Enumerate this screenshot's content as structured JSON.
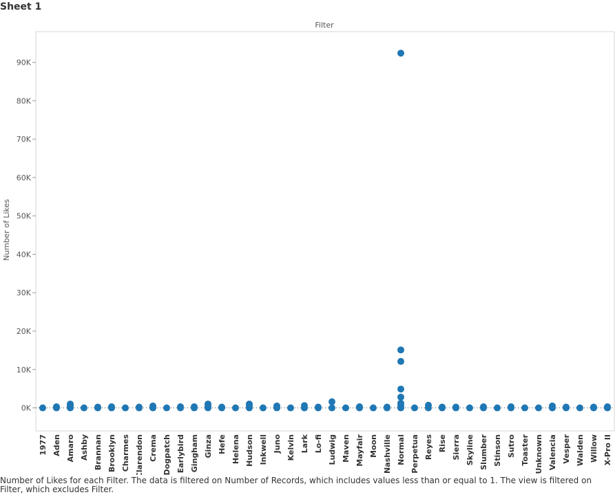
{
  "sheet": {
    "title": "Sheet 1",
    "caption": "Number of Likes for each Filter. The data is filtered on Number of Records, which includes values less than or equal to 1. The view is filtered on Filter, which excludes Filter."
  },
  "colors": {
    "point": "#1f77b4",
    "zero_line": "#555555",
    "axis": "#cccccc"
  },
  "chart_data": {
    "type": "scatter",
    "xlabel": "Filter",
    "ylabel": "Number of Likes",
    "ylim": [
      -6000,
      98000
    ],
    "yticks": [
      0,
      10000,
      20000,
      30000,
      40000,
      50000,
      60000,
      70000,
      80000,
      90000
    ],
    "ytick_labels": [
      "0K",
      "10K",
      "20K",
      "30K",
      "40K",
      "50K",
      "60K",
      "70K",
      "80K",
      "90K"
    ],
    "grid": false,
    "categories": [
      "1977",
      "Aden",
      "Amaro",
      "Ashby",
      "Brannan",
      "Brooklyn",
      "Charmes",
      "Clarendon",
      "Crema",
      "Dogpatch",
      "Earlybird",
      "Gingham",
      "Ginza",
      "Hefe",
      "Helena",
      "Hudson",
      "Inkwell",
      "Juno",
      "Kelvin",
      "Lark",
      "Lo-fi",
      "Ludwig",
      "Maven",
      "Mayfair",
      "Moon",
      "Nashville",
      "Normal",
      "Perpetua",
      "Reyes",
      "Rise",
      "Sierra",
      "Skyline",
      "Slumber",
      "Stinson",
      "Sutro",
      "Toaster",
      "Unknown",
      "Valencia",
      "Vesper",
      "Walden",
      "Willow",
      "X-Pro II"
    ],
    "series": [
      {
        "points": [
          [
            "1977",
            0
          ],
          [
            "Aden",
            0
          ],
          [
            "Aden",
            300
          ],
          [
            "Amaro",
            0
          ],
          [
            "Amaro",
            500
          ],
          [
            "Amaro",
            1000
          ],
          [
            "Ashby",
            0
          ],
          [
            "Brannan",
            0
          ],
          [
            "Brannan",
            200
          ],
          [
            "Brooklyn",
            0
          ],
          [
            "Brooklyn",
            300
          ],
          [
            "Charmes",
            0
          ],
          [
            "Clarendon",
            0
          ],
          [
            "Clarendon",
            200
          ],
          [
            "Crema",
            0
          ],
          [
            "Crema",
            500
          ],
          [
            "Dogpatch",
            0
          ],
          [
            "Earlybird",
            0
          ],
          [
            "Earlybird",
            300
          ],
          [
            "Gingham",
            0
          ],
          [
            "Gingham",
            300
          ],
          [
            "Ginza",
            0
          ],
          [
            "Ginza",
            500
          ],
          [
            "Ginza",
            1000
          ],
          [
            "Hefe",
            0
          ],
          [
            "Hefe",
            200
          ],
          [
            "Helena",
            0
          ],
          [
            "Hudson",
            0
          ],
          [
            "Hudson",
            500
          ],
          [
            "Hudson",
            1000
          ],
          [
            "Inkwell",
            0
          ],
          [
            "Juno",
            0
          ],
          [
            "Juno",
            500
          ],
          [
            "Kelvin",
            0
          ],
          [
            "Lark",
            0
          ],
          [
            "Lark",
            600
          ],
          [
            "Lo-fi",
            0
          ],
          [
            "Lo-fi",
            200
          ],
          [
            "Ludwig",
            0
          ],
          [
            "Ludwig",
            1600
          ],
          [
            "Maven",
            0
          ],
          [
            "Mayfair",
            0
          ],
          [
            "Mayfair",
            300
          ],
          [
            "Moon",
            0
          ],
          [
            "Nashville",
            0
          ],
          [
            "Nashville",
            200
          ],
          [
            "Normal",
            0
          ],
          [
            "Normal",
            500
          ],
          [
            "Normal",
            1200
          ],
          [
            "Normal",
            2800
          ],
          [
            "Normal",
            4900
          ],
          [
            "Normal",
            12100
          ],
          [
            "Normal",
            15100
          ],
          [
            "Normal",
            92400
          ],
          [
            "Perpetua",
            0
          ],
          [
            "Reyes",
            0
          ],
          [
            "Reyes",
            700
          ],
          [
            "Rise",
            0
          ],
          [
            "Rise",
            200
          ],
          [
            "Sierra",
            0
          ],
          [
            "Sierra",
            200
          ],
          [
            "Skyline",
            0
          ],
          [
            "Slumber",
            0
          ],
          [
            "Slumber",
            300
          ],
          [
            "Stinson",
            0
          ],
          [
            "Sutro",
            0
          ],
          [
            "Sutro",
            300
          ],
          [
            "Toaster",
            0
          ],
          [
            "Unknown",
            0
          ],
          [
            "Valencia",
            0
          ],
          [
            "Valencia",
            500
          ],
          [
            "Vesper",
            0
          ],
          [
            "Vesper",
            200
          ],
          [
            "Walden",
            0
          ],
          [
            "Willow",
            0
          ],
          [
            "Willow",
            200
          ],
          [
            "X-Pro II",
            0
          ],
          [
            "X-Pro II",
            300
          ]
        ]
      }
    ]
  }
}
